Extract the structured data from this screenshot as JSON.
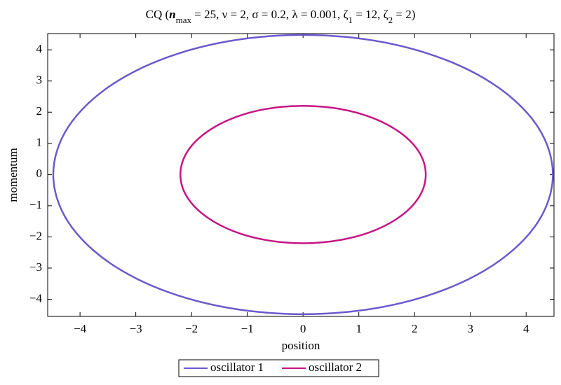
{
  "chart_data": {
    "type": "line",
    "title": [
      "CQ  (",
      "n",
      "max",
      " = 25, ν = 2, σ = 0.2, λ = 0.001, ζ",
      "1",
      " = 12, ζ",
      "2",
      " = 2)"
    ],
    "x_label": "position",
    "y_label": "momentum",
    "xlim": [
      -4.58,
      4.5
    ],
    "ylim": [
      -4.55,
      4.52
    ],
    "xticks": [
      {
        "value": -4,
        "label": "−4"
      },
      {
        "value": -3,
        "label": "−3"
      },
      {
        "value": -2,
        "label": "−2"
      },
      {
        "value": -1,
        "label": "−1"
      },
      0,
      1,
      2,
      3,
      4
    ],
    "yticks": [
      {
        "value": -4,
        "label": "−4"
      },
      {
        "value": -3,
        "label": "−3"
      },
      {
        "value": -2,
        "label": "−2"
      },
      {
        "value": -1,
        "label": "−1"
      },
      0,
      1,
      2,
      3,
      4
    ],
    "series": [
      {
        "name": "oscillator 1",
        "color": "#6a5acd",
        "x": [
          4.48,
          4.21,
          3.43,
          2.24,
          0.78,
          -0.78,
          -2.24,
          -3.43,
          -4.21,
          -4.48,
          -4.21,
          -3.43,
          -2.24,
          -0.78,
          0.78,
          2.24,
          3.43,
          4.21,
          4.48
        ],
        "y": [
          0,
          1.53,
          2.88,
          3.88,
          4.41,
          4.41,
          3.88,
          2.88,
          1.53,
          0,
          -1.53,
          -2.88,
          -3.88,
          -4.41,
          -4.41,
          -3.88,
          -2.88,
          -1.53,
          0
        ]
      },
      {
        "name": "oscillator 2",
        "color": "#c71585",
        "x": [
          2.2,
          2.07,
          1.69,
          1.1,
          0.38,
          -0.38,
          -1.1,
          -1.69,
          -2.07,
          -2.2,
          -2.07,
          -1.69,
          -1.1,
          -0.38,
          0.38,
          1.1,
          1.69,
          2.07,
          2.2
        ],
        "y": [
          0,
          0.75,
          1.41,
          1.91,
          2.17,
          2.17,
          1.91,
          1.41,
          0.75,
          0,
          -0.75,
          -1.41,
          -1.91,
          -2.17,
          -2.17,
          -1.91,
          -1.41,
          -0.75,
          0
        ]
      }
    ]
  }
}
